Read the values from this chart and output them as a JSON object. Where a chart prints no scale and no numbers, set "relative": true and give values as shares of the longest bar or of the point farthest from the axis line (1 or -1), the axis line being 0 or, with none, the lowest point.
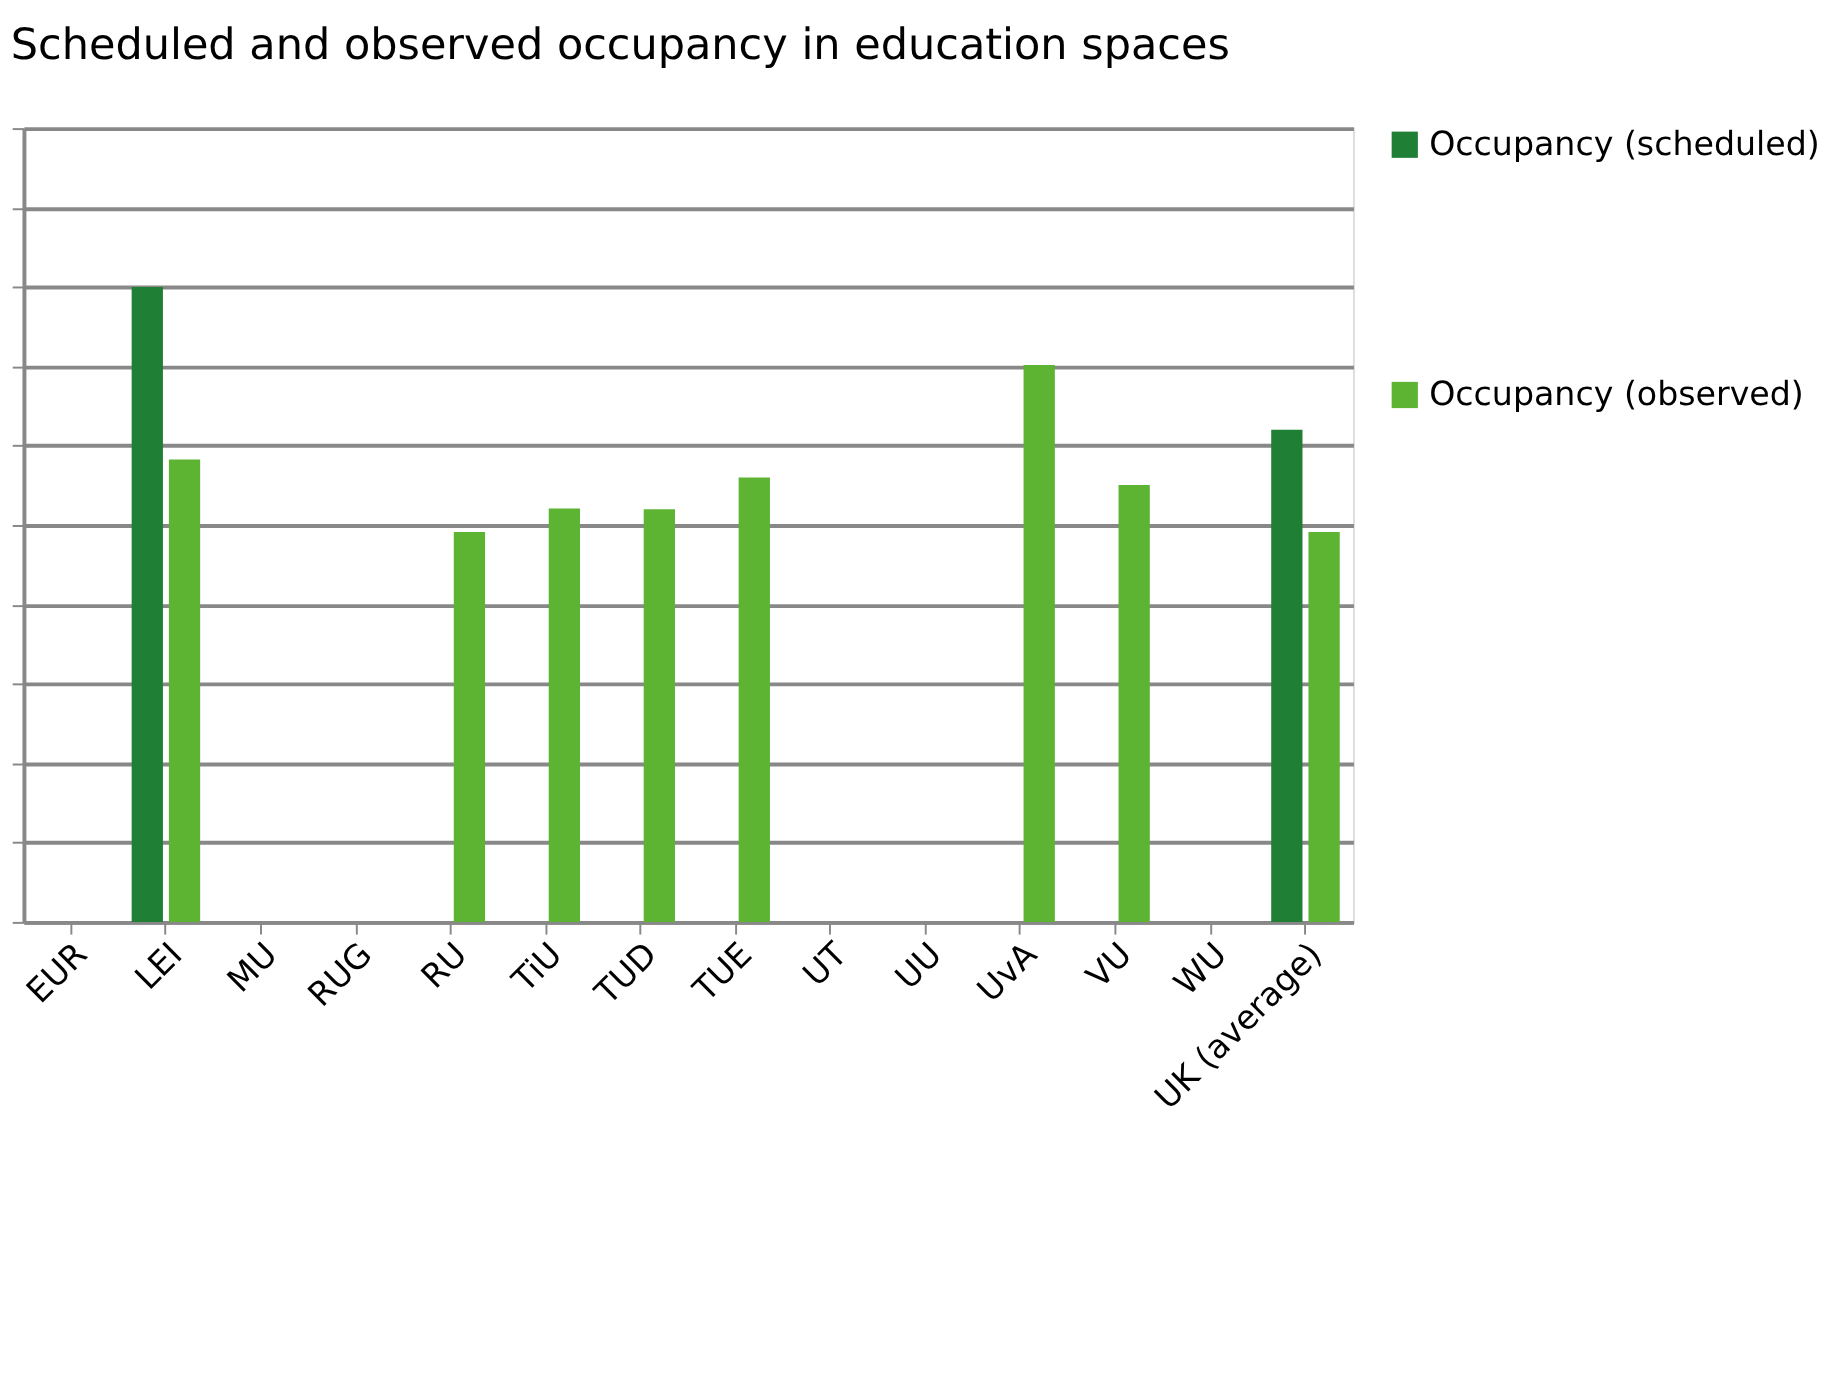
{
  "chart_data": {
    "type": "bar",
    "title": "Scheduled and observed occupancy in education spaces",
    "relative": true,
    "grid": "y",
    "legend": "right",
    "categories": [
      "EUR",
      "LEI",
      "MU",
      "RUG",
      "RU",
      "TiU",
      "TUD",
      "TUE",
      "UT",
      "UU",
      "UvA",
      "VU",
      "WU",
      "UK (average)"
    ],
    "series": [
      {
        "name": "Occupancy (scheduled)",
        "color": "#1e7f35",
        "values": [
          null,
          1,
          null,
          null,
          null,
          null,
          null,
          null,
          null,
          null,
          null,
          null,
          null,
          0.775
        ]
      },
      {
        "name": "Occupancy (observed)",
        "color": "#5db332",
        "values": [
          null,
          0.728,
          null,
          null,
          0.614,
          0.651,
          0.65,
          0.7,
          null,
          null,
          0.877,
          0.688,
          null,
          0.614
        ]
      }
    ]
  }
}
